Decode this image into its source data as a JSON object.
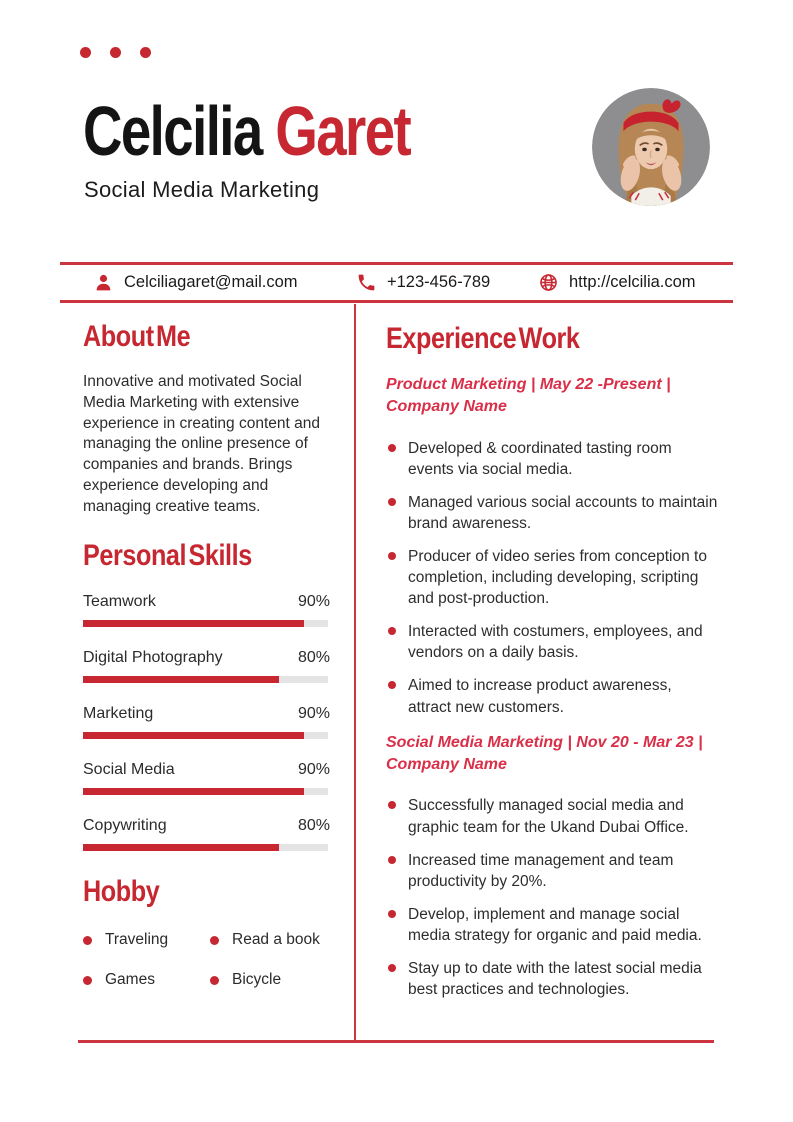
{
  "theme": {
    "accent": "#c62730",
    "accent_bright": "#d92f48",
    "line": "#cc353f",
    "bar_track": "#e4e4e4",
    "text": "#2d2d2d",
    "photo_bg": "#8e8e90"
  },
  "header": {
    "first_name": "Celcilia",
    "last_name": "Garet",
    "subtitle": "Social Media Marketing"
  },
  "contact": {
    "email": {
      "icon": "person-icon",
      "value": "Celciliagaret@mail.com"
    },
    "phone": {
      "icon": "phone-icon",
      "value": "+123-456-789"
    },
    "website": {
      "icon": "globe-icon",
      "value": "http://celcilia.com"
    }
  },
  "about": {
    "title": "About Me",
    "text": "Innovative and motivated Social Media Marketing with extensive experience in creating content and managing the online presence of companies and brands. Brings experience developing and managing creative teams."
  },
  "skills": {
    "title": "Personal Skills",
    "items": [
      {
        "label": "Teamwork",
        "percent": "90%",
        "value": 90
      },
      {
        "label": "Digital Photography",
        "percent": "80%",
        "value": 80
      },
      {
        "label": "Marketing",
        "percent": "90%",
        "value": 90
      },
      {
        "label": "Social Media",
        "percent": "90%",
        "value": 90
      },
      {
        "label": "Copywriting",
        "percent": "80%",
        "value": 80
      }
    ]
  },
  "hobby": {
    "title": "Hobby",
    "items": [
      "Traveling",
      "Games",
      "Read a book",
      "Bicycle"
    ]
  },
  "experience": {
    "title": "Experience Work",
    "jobs": [
      {
        "heading": "Product Marketing | May 22 -Present | Company Name",
        "bullets": [
          "Developed & coordinated tasting room events via social media.",
          "Managed various social accounts to maintain brand awareness.",
          "Producer of video series from conception to completion, including developing, scripting and post-production.",
          "Interacted with costumers, employees, and vendors on a daily basis.",
          "Aimed to increase product awareness, attract new customers."
        ]
      },
      {
        "heading": "Social Media Marketing | Nov 20 - Mar 23 | Company Name",
        "bullets": [
          "Successfully managed social media and graphic team for the Ukand Dubai Office.",
          "Increased time management and team productivity by 20%.",
          "Develop, implement and manage social media strategy for organic and paid media.",
          "Stay up to date with the latest social media best practices and technologies."
        ]
      }
    ]
  }
}
